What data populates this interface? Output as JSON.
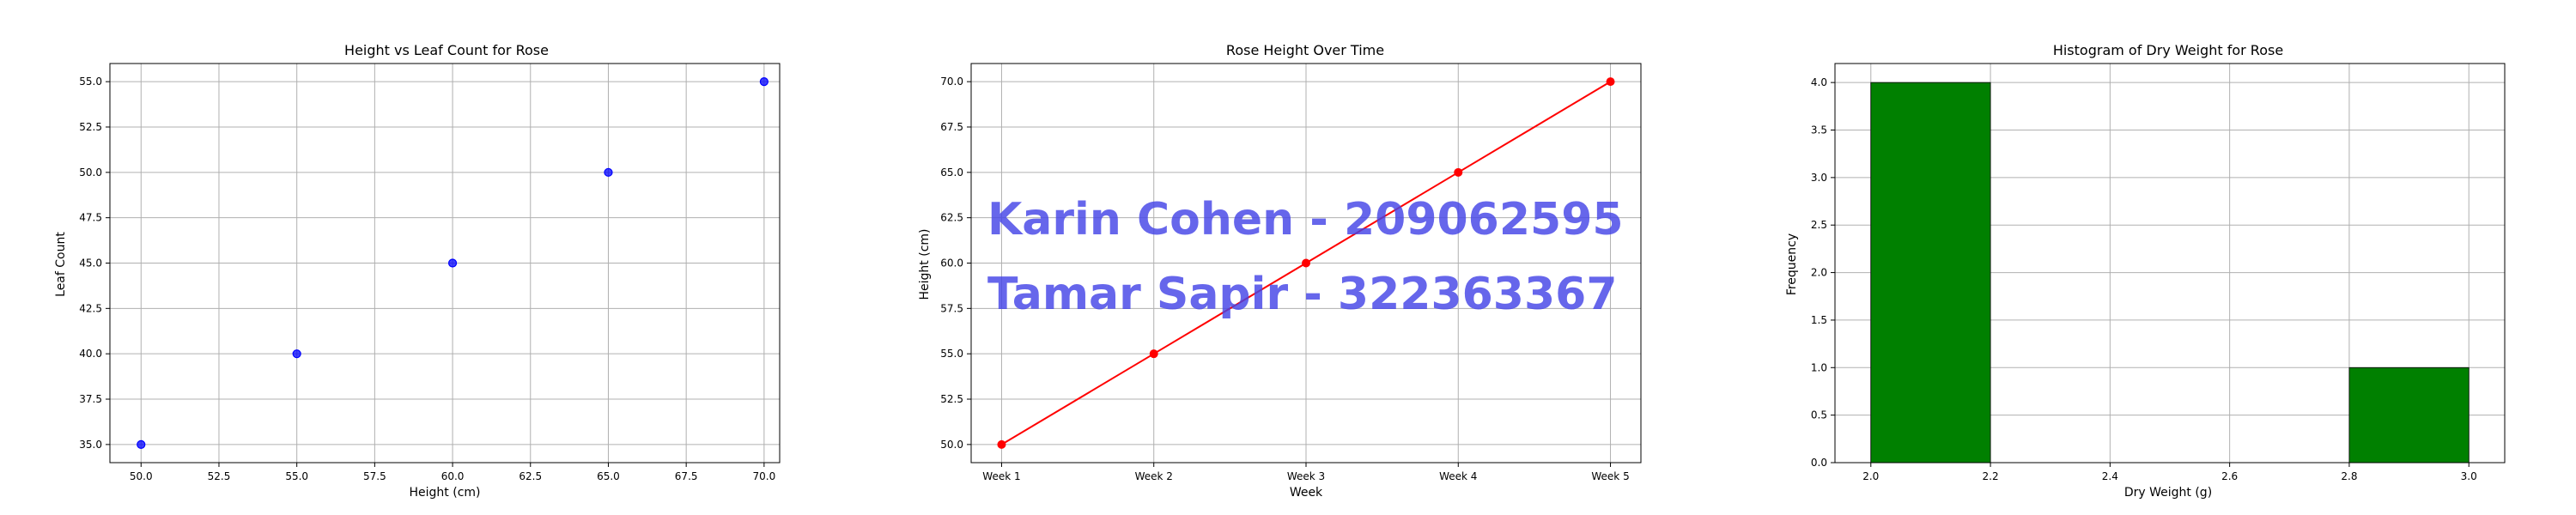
{
  "watermarks": [
    "Karin Cohen - 209062595",
    "Tamar Sapir - 322363367"
  ],
  "colors": {
    "scatter": "#0000ff",
    "line": "#ff0000",
    "bar": "#008000",
    "watermark": "#5050e8",
    "grid": "#b0b0b0"
  },
  "chart_data": [
    {
      "type": "scatter",
      "title": "Height vs Leaf Count for Rose",
      "xlabel": "Height (cm)",
      "ylabel": "Leaf Count",
      "xlim": [
        49,
        70.5
      ],
      "ylim": [
        34,
        56
      ],
      "grid": true,
      "x_ticks": [
        "50.0",
        "52.5",
        "55.0",
        "57.5",
        "60.0",
        "62.5",
        "65.0",
        "67.5",
        "70.0"
      ],
      "y_ticks": [
        "35.0",
        "37.5",
        "40.0",
        "42.5",
        "45.0",
        "47.5",
        "50.0",
        "52.5",
        "55.0"
      ],
      "x": [
        50,
        55,
        60,
        65,
        70
      ],
      "y": [
        35,
        40,
        45,
        50,
        55
      ],
      "color": "#0000ff"
    },
    {
      "type": "line",
      "title": "Rose Height Over Time",
      "xlabel": "Week",
      "ylabel": "Height (cm)",
      "categories": [
        "Week 1",
        "Week 2",
        "Week 3",
        "Week 4",
        "Week 5"
      ],
      "values": [
        50,
        55,
        60,
        65,
        70
      ],
      "ylim": [
        49,
        71
      ],
      "grid": true,
      "y_ticks": [
        "50.0",
        "52.5",
        "55.0",
        "57.5",
        "60.0",
        "62.5",
        "65.0",
        "67.5",
        "70.0"
      ],
      "color": "#ff0000"
    },
    {
      "type": "bar",
      "title": "Histogram of Dry Weight for Rose",
      "xlabel": "Dry Weight (g)",
      "ylabel": "Frequency",
      "bins": [
        {
          "start": 2.0,
          "end": 2.2,
          "count": 4
        },
        {
          "start": 2.2,
          "end": 2.4,
          "count": 0
        },
        {
          "start": 2.4,
          "end": 2.6,
          "count": 0
        },
        {
          "start": 2.6,
          "end": 2.8,
          "count": 0
        },
        {
          "start": 2.8,
          "end": 3.0,
          "count": 1
        }
      ],
      "xlim": [
        1.94,
        3.06
      ],
      "ylim": [
        0,
        4.2
      ],
      "grid": true,
      "x_ticks": [
        "2.0",
        "2.2",
        "2.4",
        "2.6",
        "2.8",
        "3.0"
      ],
      "y_ticks": [
        "0.0",
        "0.5",
        "1.0",
        "1.5",
        "2.0",
        "2.5",
        "3.0",
        "3.5",
        "4.0"
      ],
      "color": "#008000"
    }
  ]
}
